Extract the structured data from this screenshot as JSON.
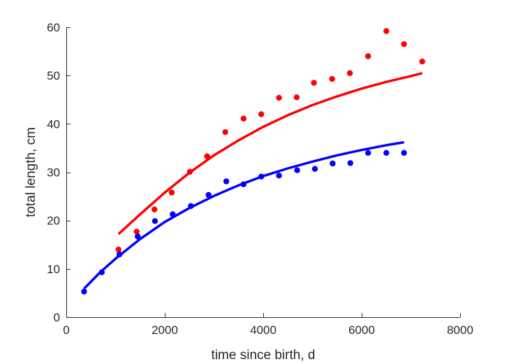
{
  "chart_data": {
    "type": "scatter",
    "xlabel": "time since birth, d",
    "ylabel": "total length, cm",
    "xlim": [
      0,
      8000
    ],
    "ylim": [
      0,
      60
    ],
    "xticks": [
      0,
      2000,
      4000,
      6000,
      8000
    ],
    "yticks": [
      0,
      10,
      20,
      30,
      40,
      50,
      60
    ],
    "xtick_labels": [
      "0",
      "2000",
      "4000",
      "6000",
      "8000"
    ],
    "ytick_labels": [
      "0",
      "10",
      "20",
      "30",
      "40",
      "50",
      "60"
    ],
    "grid": false,
    "legend": "none",
    "series": [
      {
        "color": "#ff0000",
        "points": [
          [
            1060,
            14.0
          ],
          [
            1430,
            17.7
          ],
          [
            1790,
            22.3
          ],
          [
            2140,
            25.8
          ],
          [
            2510,
            30.1
          ],
          [
            2860,
            33.3
          ],
          [
            3230,
            38.3
          ],
          [
            3600,
            41.1
          ],
          [
            3960,
            42.0
          ],
          [
            4320,
            45.4
          ],
          [
            4680,
            45.5
          ],
          [
            5030,
            48.5
          ],
          [
            5400,
            49.3
          ],
          [
            5760,
            50.5
          ],
          [
            6130,
            54.0
          ],
          [
            6500,
            59.2
          ],
          [
            6860,
            56.5
          ],
          [
            7230,
            52.9
          ]
        ],
        "fit": [
          [
            1060,
            17.2
          ],
          [
            1500,
            21.3
          ],
          [
            2000,
            25.8
          ],
          [
            2500,
            29.9
          ],
          [
            3000,
            33.5
          ],
          [
            3500,
            36.6
          ],
          [
            4000,
            39.4
          ],
          [
            4500,
            41.8
          ],
          [
            5000,
            43.9
          ],
          [
            5500,
            45.7
          ],
          [
            6000,
            47.3
          ],
          [
            6500,
            48.7
          ],
          [
            7000,
            49.9
          ],
          [
            7230,
            50.5
          ]
        ]
      },
      {
        "color": "#0000ff",
        "points": [
          [
            360,
            5.3
          ],
          [
            720,
            9.3
          ],
          [
            1080,
            13.0
          ],
          [
            1450,
            16.7
          ],
          [
            1800,
            19.9
          ],
          [
            2160,
            21.3
          ],
          [
            2530,
            23.0
          ],
          [
            2890,
            25.3
          ],
          [
            3250,
            28.1
          ],
          [
            3600,
            27.5
          ],
          [
            3960,
            29.1
          ],
          [
            4320,
            29.3
          ],
          [
            4690,
            30.4
          ],
          [
            5050,
            30.7
          ],
          [
            5410,
            31.8
          ],
          [
            5770,
            31.9
          ],
          [
            6130,
            34.0
          ],
          [
            6500,
            34.0
          ],
          [
            6860,
            34.0
          ]
        ],
        "fit": [
          [
            360,
            5.9
          ],
          [
            700,
            9.4
          ],
          [
            1000,
            12.1
          ],
          [
            1500,
            16.2
          ],
          [
            2000,
            19.7
          ],
          [
            2500,
            22.6
          ],
          [
            3000,
            25.1
          ],
          [
            3500,
            27.3
          ],
          [
            4000,
            29.2
          ],
          [
            4500,
            30.8
          ],
          [
            5000,
            32.2
          ],
          [
            5500,
            33.5
          ],
          [
            6000,
            34.6
          ],
          [
            6500,
            35.6
          ],
          [
            6860,
            36.2
          ]
        ]
      }
    ]
  }
}
